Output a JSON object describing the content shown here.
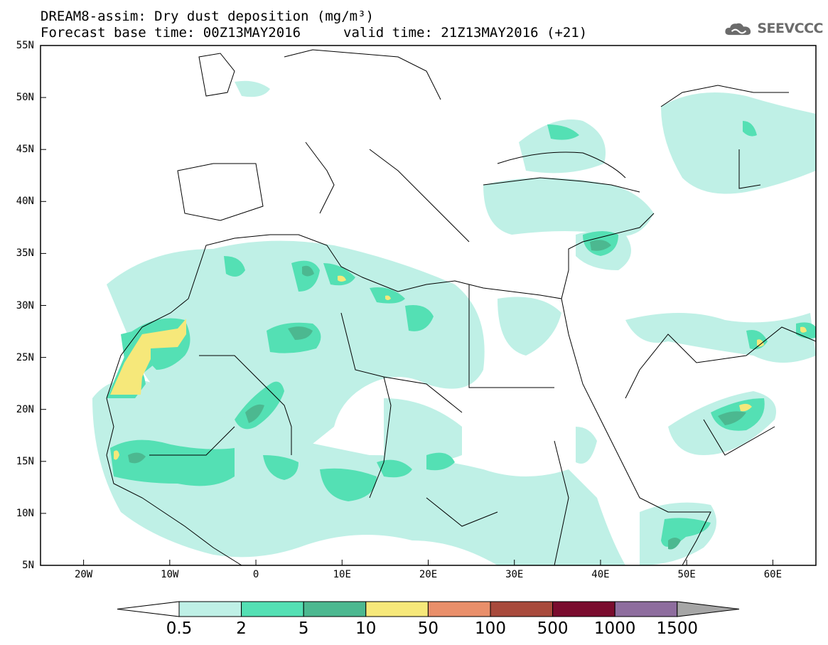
{
  "header": {
    "title_line1": "DREAM8-assim: Dry dust deposition (mg/m³)",
    "title_line2": "Forecast base time: 00Z13MAY2016",
    "valid_time": "valid time: 21Z13MAY2016 (+21)"
  },
  "logo": {
    "text": "SEEVCCC",
    "icon": "cloud-logo-icon",
    "color": "#6b6b6b"
  },
  "axes": {
    "lat_labels": [
      "55N",
      "50N",
      "45N",
      "40N",
      "35N",
      "30N",
      "25N",
      "20N",
      "15N",
      "10N",
      "5N"
    ],
    "lon_labels": [
      "20W",
      "10W",
      "0",
      "10E",
      "20E",
      "30E",
      "40E",
      "50E",
      "60E"
    ]
  },
  "legend": {
    "labels": [
      "0.5",
      "2",
      "5",
      "10",
      "50",
      "100",
      "500",
      "1000",
      "1500"
    ],
    "colors": [
      "#ffffff",
      "#bff0e6",
      "#54e0b4",
      "#4cb890",
      "#f6e87a",
      "#e98f6a",
      "#a84a3c",
      "#7a0c2e",
      "#8e6d9e",
      "#a6a6a6"
    ]
  },
  "map": {
    "lat_range": [
      5,
      55
    ],
    "lon_range": [
      -25,
      65
    ]
  }
}
